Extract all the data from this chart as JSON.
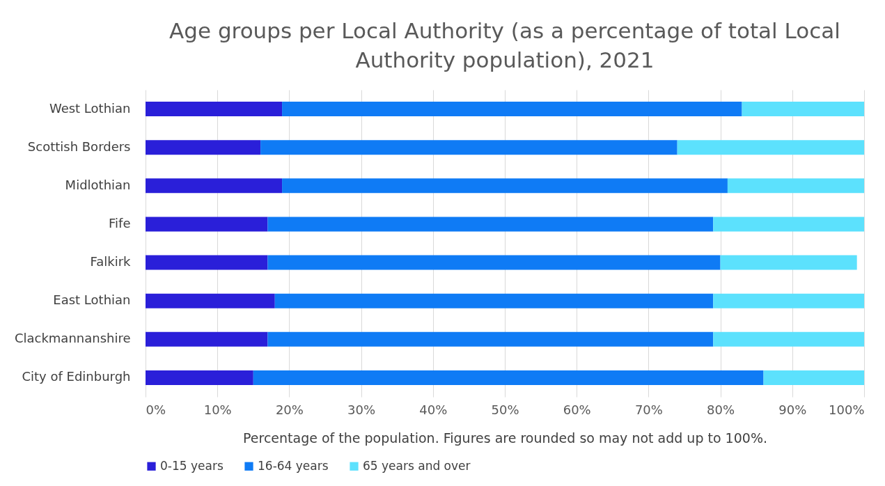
{
  "chart_data": {
    "type": "bar",
    "orientation": "horizontal",
    "stacked": true,
    "title": "Age groups per Local Authority (as a percentage of total Local Authority population), 2021",
    "xlabel": "Percentage of the population. Figures are rounded so may not add up to 100%.",
    "categories": [
      "West Lothian",
      "Scottish Borders",
      "Midlothian",
      "Fife",
      "Falkirk",
      "East Lothian",
      "Clackmannanshire",
      "City of Edinburgh"
    ],
    "series": [
      {
        "name": "0-15 years",
        "color": "#2a1fd9",
        "values": [
          19,
          16,
          19,
          17,
          17,
          18,
          17,
          15
        ]
      },
      {
        "name": "16-64 years",
        "color": "#0f7bf5",
        "values": [
          64,
          58,
          62,
          62,
          63,
          61,
          62,
          71
        ]
      },
      {
        "name": "65 years and over",
        "color": "#5ce1fd",
        "values": [
          17,
          26,
          19,
          21,
          19,
          21,
          21,
          14
        ]
      }
    ],
    "xlim": [
      0,
      100
    ],
    "xticks": [
      {
        "value": 0,
        "label": "0%"
      },
      {
        "value": 10,
        "label": "10%"
      },
      {
        "value": 20,
        "label": "20%"
      },
      {
        "value": 30,
        "label": "30%"
      },
      {
        "value": 40,
        "label": "40%"
      },
      {
        "value": 50,
        "label": "50%"
      },
      {
        "value": 60,
        "label": "60%"
      },
      {
        "value": 70,
        "label": "70%"
      },
      {
        "value": 80,
        "label": "80%"
      },
      {
        "value": 90,
        "label": "90%"
      },
      {
        "value": 100,
        "label": "100%"
      }
    ],
    "grid": "x",
    "legend": "bottom"
  }
}
